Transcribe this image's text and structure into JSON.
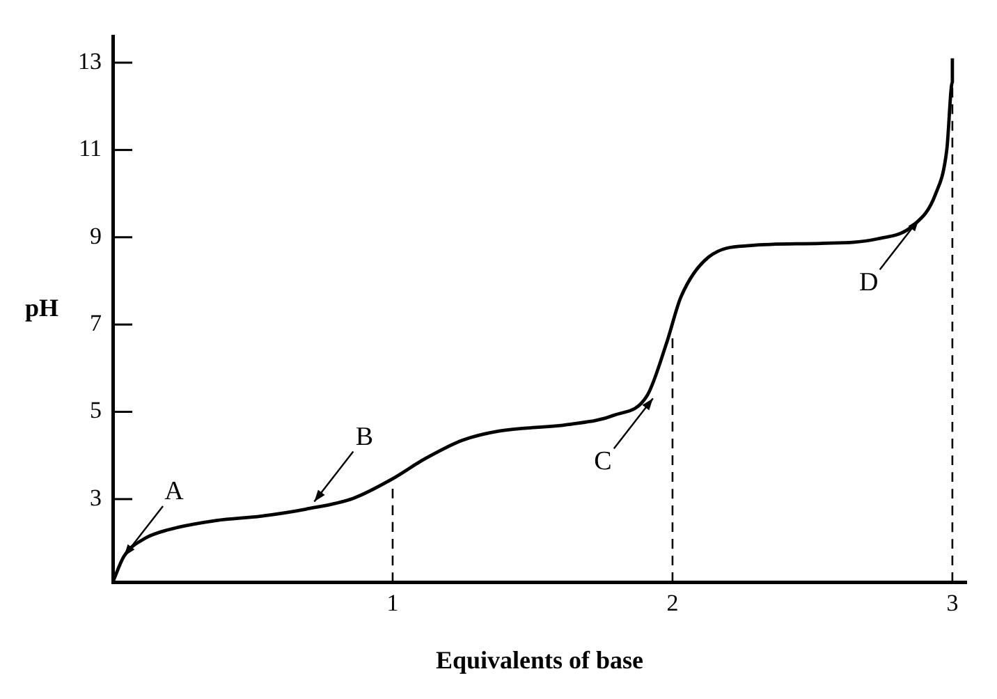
{
  "chart_data": {
    "type": "line",
    "xlabel": "Equivalents of base",
    "ylabel": "pH",
    "xlim": [
      0,
      3.05
    ],
    "ylim": [
      1.1,
      13.6
    ],
    "xticks": [
      1,
      2,
      3
    ],
    "yticks": [
      3,
      5,
      7,
      9,
      11,
      13
    ],
    "grid": false,
    "legend": false,
    "marker": "none",
    "series": [
      {
        "color": "#000000",
        "x": [
          0,
          0.04,
          0.115,
          0.2,
          0.37,
          0.53,
          0.69,
          0.86,
          0.99,
          1.12,
          1.25,
          1.38,
          1.63,
          1.79,
          1.91,
          1.98,
          2.03,
          2.13,
          2.28,
          2.53,
          2.73,
          2.86,
          2.94,
          2.98,
          3.0,
          3.0
        ],
        "values": [
          1.1,
          1.69,
          2.1,
          2.3,
          2.51,
          2.61,
          2.77,
          3.02,
          3.43,
          3.94,
          4.35,
          4.56,
          4.71,
          4.92,
          5.38,
          6.6,
          7.63,
          8.55,
          8.81,
          8.86,
          8.96,
          9.27,
          9.99,
          11.0,
          12.55,
          13.1
        ]
      },
      {
        "color": "#000000",
        "line_style": "dashed",
        "x": [
          1,
          1
        ],
        "values": [
          1.1,
          3.25
        ]
      },
      {
        "color": "#000000",
        "line_style": "dashed",
        "x": [
          2,
          2
        ],
        "values": [
          1.1,
          6.7
        ]
      },
      {
        "color": "#000000",
        "line_style": "dashed",
        "x": [
          3,
          3
        ],
        "values": [
          1.1,
          13.0
        ]
      }
    ],
    "annotations": [
      {
        "text": "A",
        "x": 0.02,
        "y": 1.5
      },
      {
        "text": "B",
        "x": 0.7,
        "y": 2.75
      },
      {
        "text": "C",
        "x": 1.95,
        "y": 5.5
      },
      {
        "text": "D",
        "x": 2.9,
        "y": 9.6
      }
    ]
  }
}
